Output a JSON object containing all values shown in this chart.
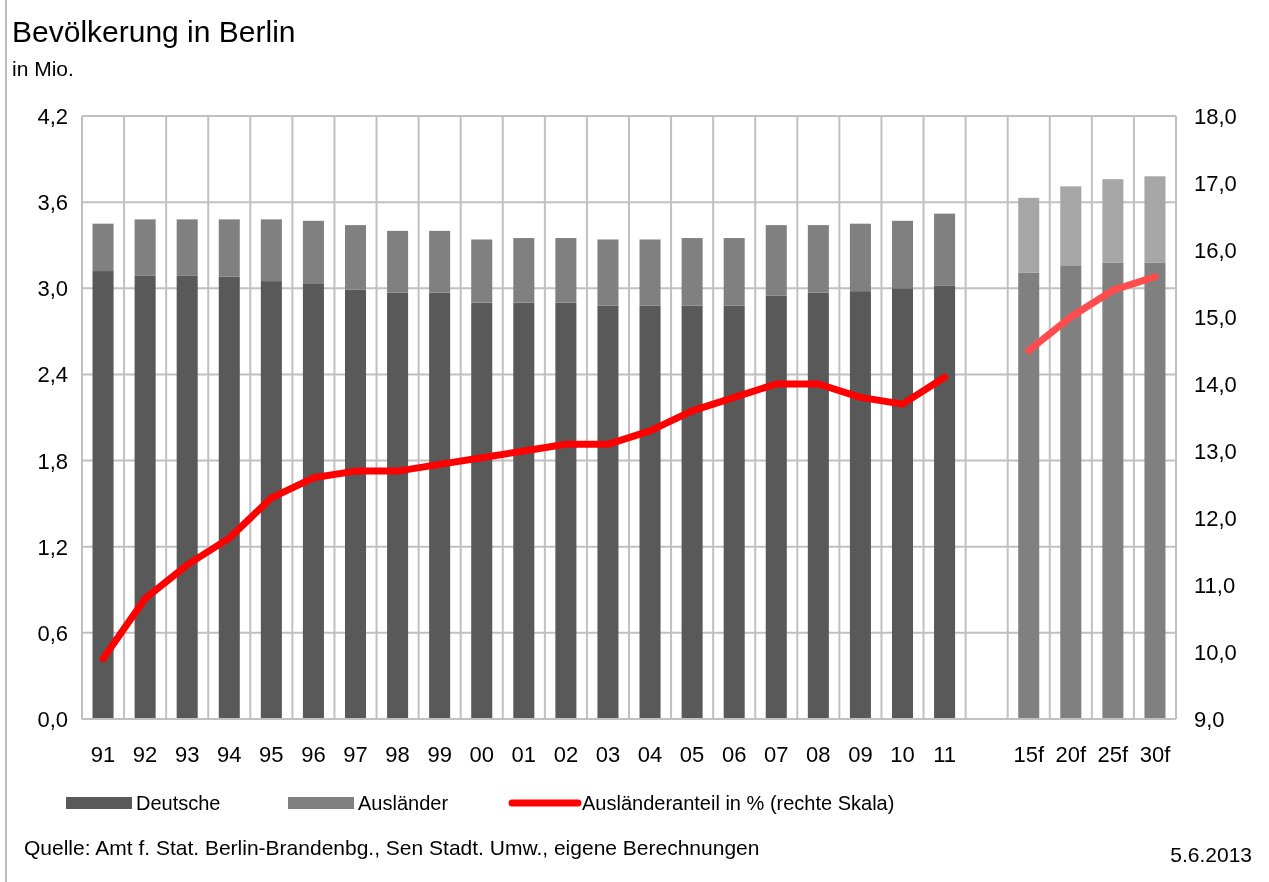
{
  "chart_data": {
    "type": "bar",
    "title": "Bevölkerung  in Berlin",
    "subtitle": "in Mio.",
    "categories": [
      "91",
      "92",
      "93",
      "94",
      "95",
      "96",
      "97",
      "98",
      "99",
      "00",
      "01",
      "02",
      "03",
      "04",
      "05",
      "06",
      "07",
      "08",
      "09",
      "10",
      "11",
      null,
      "15f",
      "20f",
      "25f",
      "30f"
    ],
    "stacked": true,
    "series": [
      {
        "name": "Deutsche",
        "color": "#595959",
        "colors": [
          "#595959",
          "#595959",
          "#595959",
          "#595959",
          "#595959",
          "#595959",
          "#595959",
          "#595959",
          "#595959",
          "#595959",
          "#595959",
          "#595959",
          "#595959",
          "#595959",
          "#595959",
          "#595959",
          "#595959",
          "#595959",
          "#595959",
          "#595959",
          "#595959",
          null,
          "#808080",
          "#808080",
          "#808080",
          "#808080"
        ],
        "values": [
          3.12,
          3.09,
          3.09,
          3.08,
          3.05,
          3.03,
          2.99,
          2.97,
          2.97,
          2.9,
          2.9,
          2.9,
          2.88,
          2.88,
          2.88,
          2.88,
          2.95,
          2.97,
          2.98,
          3.0,
          3.02,
          null,
          3.11,
          3.16,
          3.18,
          3.18
        ]
      },
      {
        "name": "Ausländer",
        "color": "#808080",
        "colors": [
          "#808080",
          "#808080",
          "#808080",
          "#808080",
          "#808080",
          "#808080",
          "#808080",
          "#808080",
          "#808080",
          "#808080",
          "#808080",
          "#808080",
          "#808080",
          "#808080",
          "#808080",
          "#808080",
          "#808080",
          "#808080",
          "#808080",
          "#808080",
          "#808080",
          null,
          "#a6a6a6",
          "#a6a6a6",
          "#a6a6a6",
          "#a6a6a6"
        ],
        "values": [
          0.33,
          0.39,
          0.39,
          0.4,
          0.43,
          0.44,
          0.45,
          0.43,
          0.43,
          0.44,
          0.45,
          0.45,
          0.46,
          0.46,
          0.47,
          0.47,
          0.49,
          0.47,
          0.47,
          0.47,
          0.5,
          null,
          0.52,
          0.55,
          0.58,
          0.6
        ]
      },
      {
        "name": "Ausländeranteil in % (rechte Skala)",
        "type": "line",
        "axis": "y2",
        "color": "#ff0000",
        "values": [
          9.9,
          10.8,
          11.3,
          11.7,
          12.3,
          12.6,
          12.7,
          12.7,
          12.8,
          12.9,
          13.0,
          13.1,
          13.1,
          13.3,
          13.6,
          13.8,
          14.0,
          14.0,
          13.8,
          13.7,
          14.1,
          null,
          null,
          null,
          null,
          null
        ]
      },
      {
        "type": "line",
        "axis": "y2",
        "color": "#ff4d4d",
        "values": [
          null,
          null,
          null,
          null,
          null,
          null,
          null,
          null,
          null,
          null,
          null,
          null,
          null,
          null,
          null,
          null,
          null,
          null,
          null,
          null,
          null,
          null,
          14.5,
          15.0,
          15.4,
          15.6
        ]
      }
    ],
    "ylim": [
      0,
      4.2
    ],
    "yticks": [
      {
        "value": 0,
        "label": "0,0"
      },
      {
        "value": 0.6,
        "label": "0,6"
      },
      {
        "value": 1.2,
        "label": "1,2"
      },
      {
        "value": 1.8,
        "label": "1,8"
      },
      {
        "value": 2.4,
        "label": "2,4"
      },
      {
        "value": 3.0,
        "label": "3,0"
      },
      {
        "value": 3.6,
        "label": "3,6"
      },
      {
        "value": 4.2,
        "label": "4,2"
      }
    ],
    "y2lim": [
      9,
      18
    ],
    "y2ticks": [
      {
        "value": 9,
        "label": "9,0"
      },
      {
        "value": 10,
        "label": "10,0"
      },
      {
        "value": 11,
        "label": "11,0"
      },
      {
        "value": 12,
        "label": "12,0"
      },
      {
        "value": 13,
        "label": "13,0"
      },
      {
        "value": 14,
        "label": "14,0"
      },
      {
        "value": 15,
        "label": "15,0"
      },
      {
        "value": 16,
        "label": "16,0"
      },
      {
        "value": 17,
        "label": "17,0"
      },
      {
        "value": 18,
        "label": "18,0"
      }
    ],
    "grid": true,
    "legend": "bottom",
    "line_style": "solid",
    "annotations": [
      "Quelle: Amt f. Stat. Berlin-Brandenbg., Sen Stadt. Umw., eigene Berechnungen",
      "5.6.2013"
    ]
  }
}
